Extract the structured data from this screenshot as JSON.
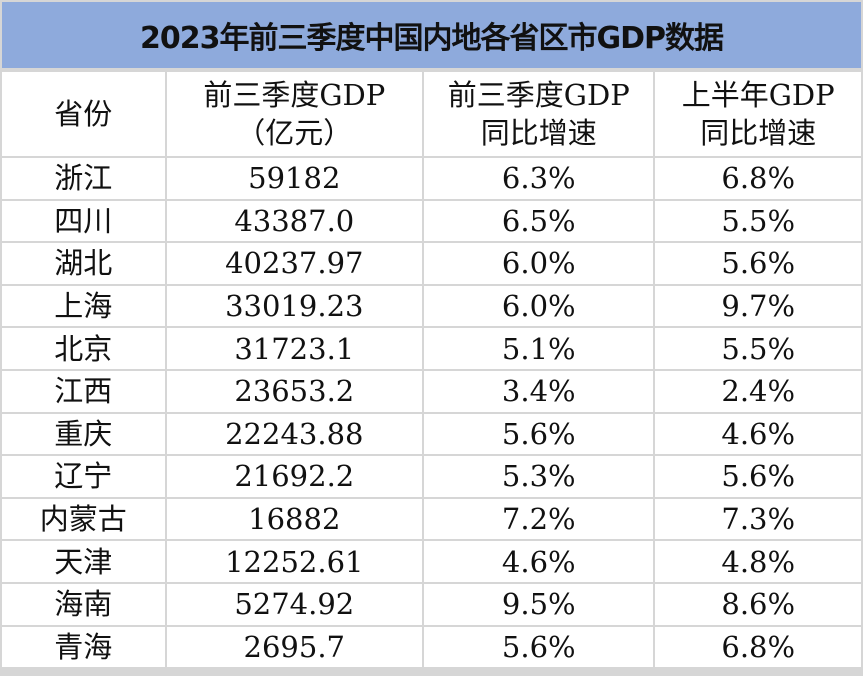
{
  "title": "2023年前三季度中国内地各省区市GDP数据",
  "colors": {
    "title_bg": "#8eaadc",
    "grid": "#d6d6d6"
  },
  "headers": [
    {
      "line1": "省份",
      "line2": ""
    },
    {
      "line1": "前三季度GDP",
      "line2": "（亿元）"
    },
    {
      "line1": "前三季度GDP",
      "line2": "同比增速"
    },
    {
      "line1": "上半年GDP",
      "line2": "同比增速"
    }
  ],
  "rows": [
    [
      "浙江",
      "59182",
      "6.3%",
      "6.8%"
    ],
    [
      "四川",
      "43387.0",
      "6.5%",
      "5.5%"
    ],
    [
      "湖北",
      "40237.97",
      "6.0%",
      "5.6%"
    ],
    [
      "上海",
      "33019.23",
      "6.0%",
      "9.7%"
    ],
    [
      "北京",
      "31723.1",
      "5.1%",
      "5.5%"
    ],
    [
      "江西",
      "23653.2",
      "3.4%",
      "2.4%"
    ],
    [
      "重庆",
      "22243.88",
      "5.6%",
      "4.6%"
    ],
    [
      "辽宁",
      "21692.2",
      "5.3%",
      "5.6%"
    ],
    [
      "内蒙古",
      "16882",
      "7.2%",
      "7.3%"
    ],
    [
      "天津",
      "12252.61",
      "4.6%",
      "4.8%"
    ],
    [
      "海南",
      "5274.92",
      "9.5%",
      "8.6%"
    ],
    [
      "青海",
      "2695.7",
      "5.6%",
      "6.8%"
    ]
  ]
}
